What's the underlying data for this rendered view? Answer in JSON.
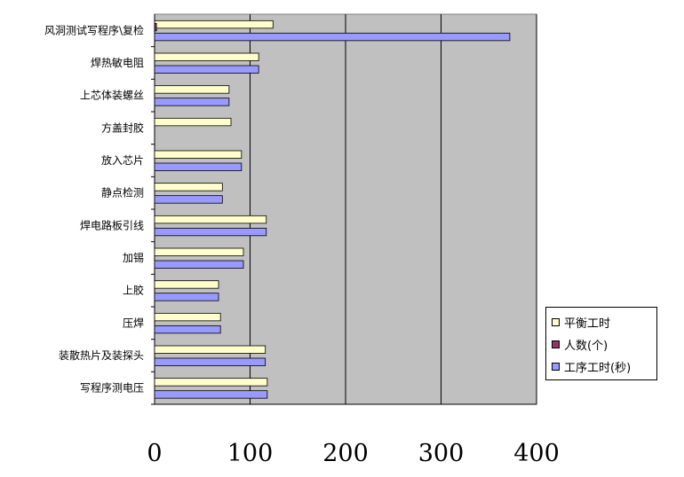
{
  "chart_data": {
    "type": "bar",
    "orientation": "horizontal",
    "title": "",
    "xlabel": "",
    "ylabel": "",
    "xlim": [
      0,
      400
    ],
    "xticks": [
      0,
      100,
      200,
      300,
      400
    ],
    "grid": true,
    "legend_position": "right",
    "categories": [
      "风洞测试写程序\\复检",
      "焊热敏电阻",
      "上芯体装螺丝",
      "方盖封胶",
      "放入芯片",
      "静点检测",
      "焊电路板引线",
      "加锡",
      "上胶",
      "压焊",
      "装散热片及装探头",
      "写程序测电压"
    ],
    "series": [
      {
        "name": "平衡工时",
        "color": "#ffffcc",
        "values": [
          124,
          109,
          78,
          80,
          91,
          71,
          117,
          93,
          67,
          69,
          116,
          118
        ]
      },
      {
        "name": "人数(个)",
        "color": "#993366",
        "values": [
          2,
          0,
          0,
          0,
          0,
          0,
          0,
          0,
          0,
          0,
          0,
          0
        ]
      },
      {
        "name": "工序工时(秒)",
        "color": "#9999ff",
        "values": [
          372,
          109,
          78,
          0,
          91,
          71,
          117,
          93,
          67,
          69,
          116,
          118
        ]
      }
    ]
  }
}
